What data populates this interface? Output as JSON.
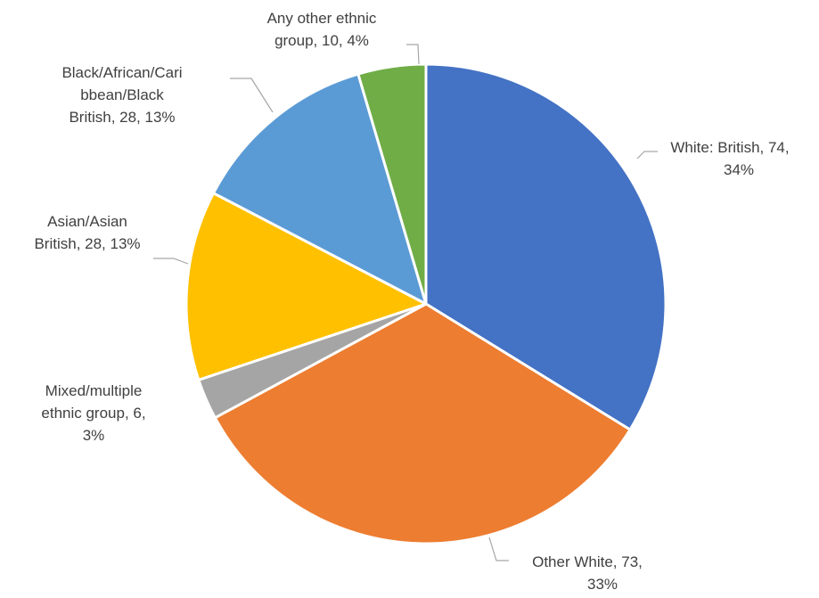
{
  "chart_data": {
    "type": "pie",
    "title": "",
    "slices": [
      {
        "category": "White: British",
        "value": 74,
        "percent": "34%",
        "color": "#4472C4",
        "label_lines": [
          "White: British, 74,",
          "34%"
        ]
      },
      {
        "category": "Other White",
        "value": 73,
        "percent": "33%",
        "color": "#ED7D31",
        "label_lines": [
          "Other White, 73,",
          "33%"
        ]
      },
      {
        "category": "Mixed/multiple ethnic group",
        "value": 6,
        "percent": "3%",
        "color": "#A5A5A5",
        "label_lines": [
          "Mixed/multiple",
          "ethnic group, 6,",
          "3%"
        ]
      },
      {
        "category": "Asian/Asian British",
        "value": 28,
        "percent": "13%",
        "color": "#FFC000",
        "label_lines": [
          "Asian/Asian",
          "British, 28, 13%"
        ]
      },
      {
        "category": "Black/African/Caribbean/Black British",
        "value": 28,
        "percent": "13%",
        "color": "#5B9BD5",
        "label_lines": [
          "Black/African/Cari",
          "bbean/Black",
          "British, 28, 13%"
        ]
      },
      {
        "category": "Any other ethnic group",
        "value": 10,
        "percent": "4%",
        "color": "#70AD47",
        "label_lines": [
          "Any other ethnic",
          "group, 10, 4%"
        ]
      }
    ],
    "start_angle_deg": 0,
    "direction": "clockwise",
    "leader_line_color": "#A6A6A6",
    "label_color": "#404040"
  }
}
